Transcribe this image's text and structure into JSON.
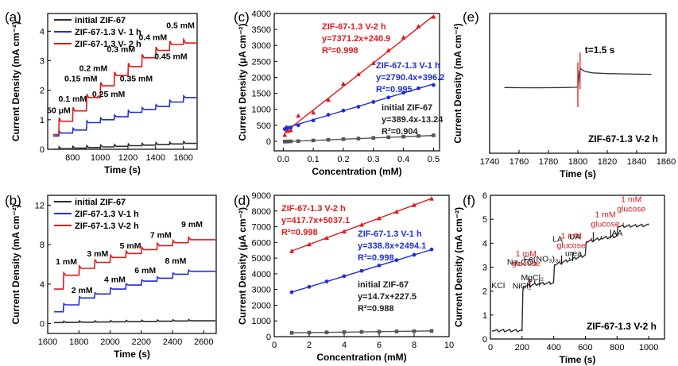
{
  "chart_data": [
    {
      "id": "a",
      "panel_label": "(a)",
      "type": "line",
      "xlabel": "Time (s)",
      "ylabel": "Current Density (mA cm⁻²)",
      "xlim": [
        620,
        1700
      ],
      "ylim": [
        0,
        4.6
      ],
      "xticks": [
        800,
        1000,
        1200,
        1400,
        1600
      ],
      "yticks": [
        0,
        1,
        2,
        3,
        4
      ],
      "xtick_labels": [
        "800",
        "1000",
        "1200",
        "1400",
        "1600"
      ],
      "ytick_labels": [
        "0",
        "1",
        "2",
        "3",
        "4"
      ],
      "legend": [
        "initial ZIF-67",
        "ZIF-67-1.3 V- 1 h",
        "ZIF-67-1.3 V- 2 h"
      ],
      "steps_x": [
        700,
        800,
        900,
        1000,
        1100,
        1200,
        1300,
        1400,
        1500,
        1600
      ],
      "series": [
        {
          "name": "initial ZIF-67",
          "color": "#2b2b2b",
          "start": 0.0,
          "values": [
            0.02,
            0.04,
            0.06,
            0.08,
            0.1,
            0.12,
            0.14,
            0.16,
            0.18,
            0.2
          ]
        },
        {
          "name": "ZIF-67-1.3 V- 1 h",
          "color": "#1f2fd6",
          "start": 0.45,
          "values": [
            0.55,
            0.65,
            0.9,
            1.0,
            1.1,
            1.25,
            1.35,
            1.45,
            1.6,
            1.75
          ]
        },
        {
          "name": "ZIF-67-1.3 V- 2 h",
          "color": "#e0181a",
          "start": 0.5,
          "values": [
            0.95,
            1.3,
            1.75,
            2.15,
            2.5,
            2.8,
            3.1,
            3.35,
            3.55,
            3.6
          ]
        }
      ],
      "annotations": [
        {
          "text": "50 μM",
          "x": 700,
          "y": 1.22
        },
        {
          "text": "0.1 mM",
          "x": 800,
          "y": 1.62
        },
        {
          "text": "0.15 mM",
          "x": 860,
          "y": 2.3
        },
        {
          "text": "0.2 mM",
          "x": 950,
          "y": 2.65
        },
        {
          "text": "0.25 mM",
          "x": 1060,
          "y": 1.78
        },
        {
          "text": "0.3 mM",
          "x": 1150,
          "y": 3.3
        },
        {
          "text": "0.35 mM",
          "x": 1260,
          "y": 2.3
        },
        {
          "text": "0.4 mM",
          "x": 1380,
          "y": 3.7
        },
        {
          "text": "0.45 mM",
          "x": 1510,
          "y": 3.05
        },
        {
          "text": "0.5 mM",
          "x": 1580,
          "y": 4.1
        }
      ]
    },
    {
      "id": "b",
      "panel_label": "(b)",
      "type": "line",
      "xlabel": "Time (s)",
      "ylabel": "Current Density (mA cm⁻²)",
      "xlim": [
        1600,
        2680
      ],
      "ylim": [
        -1,
        13
      ],
      "xticks": [
        1600,
        1800,
        2000,
        2200,
        2400,
        2600
      ],
      "yticks": [
        0,
        4,
        8,
        12
      ],
      "xtick_labels": [
        "1600",
        "1800",
        "2000",
        "2200",
        "2400",
        "2600"
      ],
      "ytick_labels": [
        "0",
        "4",
        "8",
        "12"
      ],
      "legend": [
        "initial ZIF-67",
        "ZIF-67-1.3 V-1 h",
        "ZIF-67-1.3 V-2 h"
      ],
      "steps_x": [
        1700,
        1800,
        1900,
        2000,
        2100,
        2200,
        2300,
        2400,
        2500
      ],
      "series": [
        {
          "name": "initial ZIF-67",
          "color": "#2b2b2b",
          "start": 0.1,
          "values": [
            0.12,
            0.14,
            0.16,
            0.18,
            0.2,
            0.22,
            0.24,
            0.26,
            0.28
          ]
        },
        {
          "name": "ZIF-67-1.3 V-1 h",
          "color": "#1f2fd6",
          "start": 1.2,
          "values": [
            1.9,
            2.6,
            3.0,
            3.5,
            3.9,
            4.3,
            4.6,
            5.0,
            5.3
          ]
        },
        {
          "name": "ZIF-67-1.3 V-2 h",
          "color": "#e0181a",
          "start": 3.5,
          "values": [
            4.9,
            5.6,
            6.2,
            6.7,
            7.1,
            7.5,
            7.9,
            8.2,
            8.5
          ]
        }
      ],
      "annotations": [
        {
          "text": "1 mM",
          "x": 1720,
          "y": 6.0
        },
        {
          "text": "2 mM",
          "x": 1820,
          "y": 3.1
        },
        {
          "text": "3 mM",
          "x": 1920,
          "y": 6.8
        },
        {
          "text": "4 mM",
          "x": 2030,
          "y": 4.2
        },
        {
          "text": "5 mM",
          "x": 2130,
          "y": 7.6
        },
        {
          "text": "6 mM",
          "x": 2225,
          "y": 5.1
        },
        {
          "text": "7 mM",
          "x": 2325,
          "y": 8.7
        },
        {
          "text": "8 mM",
          "x": 2420,
          "y": 6.1
        },
        {
          "text": "9 mM",
          "x": 2525,
          "y": 9.8
        }
      ]
    },
    {
      "id": "c",
      "panel_label": "(c)",
      "type": "scatter",
      "xlabel": "Concentration (mM)",
      "ylabel": "Current Density (μA cm⁻²)",
      "xlim": [
        -0.03,
        0.52
      ],
      "ylim": [
        -300,
        4000
      ],
      "xticks": [
        0.0,
        0.1,
        0.2,
        0.3,
        0.4,
        0.5
      ],
      "yticks": [
        0,
        500,
        1000,
        1500,
        2000,
        2500,
        3000,
        3500,
        4000
      ],
      "xtick_labels": [
        "0.0",
        "0.1",
        "0.2",
        "0.3",
        "0.4",
        "0.5"
      ],
      "ytick_labels": [
        "0",
        "500",
        "1000",
        "1500",
        "2000",
        "2500",
        "3000",
        "3500",
        "4000"
      ],
      "series": [
        {
          "name": "ZIF-67-1.3 V-2 h",
          "color": "#e0181a",
          "marker": "triangle",
          "x": [
            0.005,
            0.01,
            0.015,
            0.025,
            0.05,
            0.1,
            0.15,
            0.2,
            0.25,
            0.3,
            0.35,
            0.4,
            0.45,
            0.5
          ],
          "y": [
            200,
            450,
            320,
            350,
            800,
            900,
            1300,
            1800,
            2100,
            2450,
            2850,
            3250,
            3600,
            3900
          ],
          "fit": [
            7371.2,
            240.9
          ],
          "label": "ZIF-67-1.3 V-2 h",
          "equation": "y=7371.2x+240.9",
          "r2": "R²=0.998"
        },
        {
          "name": "ZIF-67-1.3 V-1 h",
          "color": "#1f2fd6",
          "marker": "circle",
          "x": [
            0.005,
            0.01,
            0.015,
            0.025,
            0.05,
            0.1,
            0.15,
            0.2,
            0.25,
            0.3,
            0.35,
            0.4,
            0.45,
            0.5
          ],
          "y": [
            380,
            400,
            420,
            430,
            500,
            650,
            830,
            960,
            1080,
            1230,
            1370,
            1520,
            1660,
            1760
          ],
          "fit": [
            2790.4,
            396.2
          ],
          "label": "ZIF-67-1.3 V-1 h",
          "equation": "y=2790.4x+396.2",
          "r2": "R²=0.995"
        },
        {
          "name": "initial ZIF-67",
          "color": "#555555",
          "marker": "square",
          "x": [
            0.005,
            0.01,
            0.015,
            0.025,
            0.05,
            0.1,
            0.15,
            0.2,
            0.25,
            0.3,
            0.35,
            0.4,
            0.45,
            0.5
          ],
          "y": [
            -10,
            -8,
            -6,
            -2,
            5,
            25,
            45,
            65,
            85,
            105,
            125,
            145,
            165,
            185
          ],
          "fit": [
            389.4,
            -13.24
          ],
          "label": "initial ZIF-67",
          "equation": "y=389.4x-13.24",
          "r2": "R²=0.904"
        }
      ]
    },
    {
      "id": "d",
      "panel_label": "(d)",
      "type": "scatter",
      "xlabel": "Concentration (mM)",
      "ylabel": "Current Density (μA cm⁻²)",
      "xlim": [
        0,
        10
      ],
      "ylim": [
        0,
        9000
      ],
      "xticks": [
        0,
        2,
        4,
        6,
        8,
        10
      ],
      "yticks": [
        0,
        1000,
        2000,
        3000,
        4000,
        5000,
        6000,
        7000,
        8000,
        9000
      ],
      "xtick_labels": [
        "0",
        "2",
        "4",
        "6",
        "8",
        "10"
      ],
      "ytick_labels": [
        "0",
        "1000",
        "2000",
        "3000",
        "4000",
        "5000",
        "6000",
        "7000",
        "8000",
        "9000"
      ],
      "series": [
        {
          "name": "ZIF-67-1.3 V-2 h",
          "color": "#e0181a",
          "marker": "triangle",
          "x": [
            1,
            2,
            3,
            4,
            5,
            6,
            7,
            8,
            9
          ],
          "y": [
            5450,
            5880,
            6290,
            6700,
            7130,
            7540,
            7960,
            8380,
            8790
          ],
          "fit": [
            417.7,
            5037.1
          ],
          "label": "ZIF-67-1.3 V-2 h",
          "equation": "y=417.7x+5037.1",
          "r2": "R²=0.998"
        },
        {
          "name": "ZIF-67-1.3 V-1 h",
          "color": "#1f2fd6",
          "marker": "circle",
          "x": [
            1,
            2,
            3,
            4,
            5,
            6,
            7,
            8,
            9
          ],
          "y": [
            2830,
            3170,
            3510,
            3850,
            4190,
            4530,
            4870,
            5210,
            5550
          ],
          "fit": [
            338.8,
            2494.1
          ],
          "label": "ZIF-67-1.3 V-1 h",
          "equation": "y=338.8x+2494.1",
          "r2": "R²=0.998"
        },
        {
          "name": "initial ZIF-67",
          "color": "#555555",
          "marker": "square",
          "x": [
            1,
            2,
            3,
            4,
            5,
            6,
            7,
            8,
            9
          ],
          "y": [
            242,
            257,
            272,
            286,
            301,
            316,
            330,
            345,
            360
          ],
          "fit": [
            14.7,
            227.5
          ],
          "label": "initial ZIF-67",
          "equation": "y=14.7x+227.5",
          "r2": "R²=0.988"
        }
      ]
    },
    {
      "id": "e",
      "panel_label": "(e)",
      "type": "line",
      "xlabel": "Time (s)",
      "ylabel": "Current Density (mA cm⁻²)",
      "xlim": [
        1740,
        1860
      ],
      "ylim": [
        0,
        10
      ],
      "xticks": [
        1740,
        1760,
        1780,
        1800,
        1820,
        1840,
        1860
      ],
      "yticks": [],
      "xtick_labels": [
        "1740",
        "1760",
        "1780",
        "1800",
        "1820",
        "1840",
        "1860"
      ],
      "ytick_labels": [],
      "annotation": "t=1.5 s",
      "footer_label": "ZIF-67-1.3 V-2 h",
      "series": [
        {
          "name": "response",
          "color": "#2b2b2b",
          "x": [
            1750,
            1770,
            1790,
            1799,
            1800,
            1801,
            1801.5,
            1802,
            1803,
            1805,
            1810,
            1820,
            1830,
            1840,
            1850
          ],
          "y": [
            4.7,
            4.68,
            4.7,
            4.72,
            4.75,
            5.8,
            6.0,
            6.05,
            5.95,
            5.85,
            5.75,
            5.7,
            5.68,
            5.66,
            5.65
          ]
        }
      ]
    },
    {
      "id": "f",
      "panel_label": "(f)",
      "type": "line",
      "xlabel": "Time (s)",
      "ylabel": "Current Density (mA cm⁻²)",
      "xlim": [
        0,
        1100
      ],
      "ylim": [
        0,
        6
      ],
      "xticks": [
        0,
        200,
        400,
        600,
        800,
        1000
      ],
      "yticks": [
        0,
        1,
        2,
        3,
        4,
        5,
        6
      ],
      "xtick_labels": [
        "0",
        "200",
        "400",
        "600",
        "800",
        "1000"
      ],
      "ytick_labels": [
        "0",
        "1",
        "2",
        "3",
        "4",
        "5",
        "6"
      ],
      "footer_label": "ZIF-67-1.3 V-2 h",
      "series": [
        {
          "name": "response",
          "color": "#2b2b2b",
          "x": [
            10,
            200,
            205,
            210,
            300,
            399,
            405,
            500,
            599,
            605,
            700,
            799,
            805,
            1000
          ],
          "y": [
            0.35,
            0.35,
            2.0,
            2.2,
            2.3,
            2.35,
            3.1,
            3.3,
            3.5,
            4.05,
            4.2,
            4.3,
            4.7,
            4.75
          ]
        }
      ],
      "annotations": [
        {
          "text": "1 mM glucose",
          "color": "#e0181a",
          "x": 200,
          "y": 2.2
        },
        {
          "text": "1 mM glucose",
          "color": "#e0181a",
          "x": 400,
          "y": 3.05
        },
        {
          "text": "1 mM glucose",
          "color": "#e0181a",
          "x": 600,
          "y": 4.0
        },
        {
          "text": "1 mM glucose",
          "color": "#e0181a",
          "x": 800,
          "y": 4.65
        },
        {
          "text": "MgCl₂",
          "color": "#111111",
          "x": 280,
          "y": 2.35
        },
        {
          "text": "KCl",
          "color": "#111111",
          "x": 250,
          "y": 2.25
        },
        {
          "text": "NiCl₂",
          "color": "#111111",
          "x": 310,
          "y": 2.3
        },
        {
          "text": "urea",
          "color": "#111111",
          "x": 500,
          "y": 3.3
        },
        {
          "text": "Na₂CO₃",
          "color": "#111111",
          "x": 450,
          "y": 3.2
        },
        {
          "text": "Fe(NO₃)₃",
          "color": "#111111",
          "x": 520,
          "y": 3.35
        },
        {
          "text": "AA",
          "color": "#111111",
          "x": 700,
          "y": 4.2
        },
        {
          "text": "LA",
          "color": "#111111",
          "x": 650,
          "y": 4.15
        },
        {
          "text": "UA",
          "color": "#111111",
          "x": 760,
          "y": 4.3
        }
      ]
    }
  ]
}
